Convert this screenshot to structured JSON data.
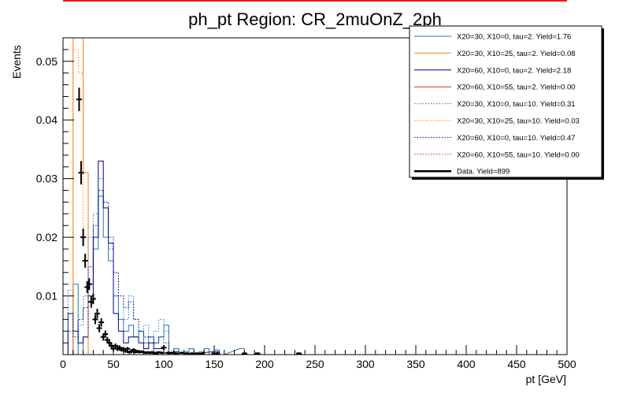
{
  "chart_data": {
    "type": "histogram",
    "title": "ph_pt Region: CR_2muOnZ_2ph",
    "xlabel": "pt [GeV]",
    "ylabel": "Events",
    "xlim": [
      0,
      500
    ],
    "ylim": [
      0,
      0.054
    ],
    "bin_width": 5,
    "x_ticks": [
      "0",
      "50",
      "100",
      "150",
      "200",
      "250",
      "300",
      "350",
      "400",
      "450",
      "500"
    ],
    "y_ticks": [
      "0.01",
      "0.02",
      "0.03",
      "0.04",
      "0.05"
    ],
    "legend_position": "top-right",
    "series": [
      {
        "name": "X20=30, X10=0, tau=2. Yield=1.76",
        "color": "#1f77b4",
        "style": "solid",
        "bins": [
          [
            5,
            0.0
          ],
          [
            10,
            0.012
          ],
          [
            15,
            0.0
          ],
          [
            20,
            0.003
          ],
          [
            25,
            0.012
          ],
          [
            30,
            0.018
          ],
          [
            35,
            0.027
          ],
          [
            40,
            0.02
          ],
          [
            45,
            0.016
          ],
          [
            50,
            0.01
          ],
          [
            55,
            0.006
          ],
          [
            60,
            0.004
          ],
          [
            65,
            0.005
          ],
          [
            70,
            0.003
          ],
          [
            75,
            0.004
          ],
          [
            80,
            0.002
          ],
          [
            85,
            0.003
          ],
          [
            90,
            0.002
          ],
          [
            95,
            0.003
          ],
          [
            100,
            0.005
          ],
          [
            105,
            0.0
          ],
          [
            110,
            0.001
          ],
          [
            115,
            0.0
          ],
          [
            120,
            0.0005
          ],
          [
            125,
            0.001
          ],
          [
            130,
            0.0
          ],
          [
            135,
            0.0005
          ],
          [
            140,
            0.001
          ],
          [
            145,
            0.0
          ],
          [
            150,
            0.0008
          ],
          [
            155,
            0.0
          ],
          [
            175,
            0.001
          ],
          [
            180,
            0.0
          ]
        ]
      },
      {
        "name": "X20=30, X10=25, tau=2. Yield=0.08",
        "color": "#ff7f0e",
        "style": "solid",
        "bins": [
          [
            5,
            0.0
          ],
          [
            10,
            0.054
          ],
          [
            15,
            0.054
          ],
          [
            20,
            0.031
          ],
          [
            25,
            0.0
          ]
        ]
      },
      {
        "name": "X20=60, X10=0, tau=2. Yield=2.18",
        "color": "#00008b",
        "style": "solid",
        "bins": [
          [
            5,
            0.007
          ],
          [
            10,
            0.004
          ],
          [
            15,
            0.002
          ],
          [
            20,
            0.003
          ],
          [
            25,
            0.01
          ],
          [
            30,
            0.02
          ],
          [
            35,
            0.033
          ],
          [
            40,
            0.025
          ],
          [
            45,
            0.019
          ],
          [
            50,
            0.007
          ],
          [
            55,
            0.004
          ],
          [
            60,
            0.002
          ],
          [
            65,
            0.003
          ],
          [
            70,
            0.003
          ],
          [
            75,
            0.002
          ],
          [
            80,
            0.001
          ],
          [
            85,
            0.002
          ],
          [
            90,
            0.001
          ],
          [
            95,
            0.001
          ],
          [
            100,
            0.0
          ],
          [
            110,
            0.0005
          ],
          [
            115,
            0.0
          ],
          [
            150,
            0.0005
          ],
          [
            155,
            0.0
          ]
        ]
      },
      {
        "name": "X20=60, X10=55, tau=2. Yield=0.00",
        "color": "#d62728",
        "style": "solid",
        "bins": []
      },
      {
        "name": "X20=30, X10=0, tau=10. Yield=0.31",
        "color": "#1f77b4",
        "style": "dotted",
        "bins": [
          [
            5,
            0.011
          ],
          [
            10,
            0.0
          ],
          [
            15,
            0.005
          ],
          [
            20,
            0.01
          ],
          [
            25,
            0.02
          ],
          [
            30,
            0.024
          ],
          [
            35,
            0.03
          ],
          [
            40,
            0.026
          ],
          [
            45,
            0.018
          ],
          [
            50,
            0.014
          ],
          [
            55,
            0.01
          ],
          [
            60,
            0.006
          ],
          [
            65,
            0.01
          ],
          [
            70,
            0.006
          ],
          [
            75,
            0.004
          ],
          [
            80,
            0.005
          ],
          [
            85,
            0.003
          ],
          [
            90,
            0.004
          ],
          [
            95,
            0.006
          ],
          [
            100,
            0.004
          ],
          [
            105,
            0.0
          ],
          [
            110,
            0.001
          ],
          [
            115,
            0.0
          ]
        ]
      },
      {
        "name": "X20=30, X10=25, tau=10. Yield=0.03",
        "color": "#ff7f0e",
        "style": "dotted",
        "bins": [
          [
            5,
            0.0
          ],
          [
            10,
            0.052
          ],
          [
            15,
            0.048
          ],
          [
            20,
            0.02
          ],
          [
            25,
            0.0
          ]
        ]
      },
      {
        "name": "X20=60, X10=0, tau=10. Yield=0.47",
        "color": "#00008b",
        "style": "dotted",
        "bins": [
          [
            5,
            0.004
          ],
          [
            10,
            0.003
          ],
          [
            15,
            0.006
          ],
          [
            20,
            0.008
          ],
          [
            25,
            0.015
          ],
          [
            30,
            0.022
          ],
          [
            35,
            0.028
          ],
          [
            40,
            0.026
          ],
          [
            45,
            0.02
          ],
          [
            50,
            0.014
          ],
          [
            55,
            0.01
          ],
          [
            60,
            0.008
          ],
          [
            65,
            0.009
          ],
          [
            70,
            0.006
          ],
          [
            75,
            0.004
          ],
          [
            80,
            0.003
          ],
          [
            85,
            0.003
          ],
          [
            90,
            0.002
          ],
          [
            95,
            0.003
          ],
          [
            100,
            0.002
          ],
          [
            105,
            0.0
          ]
        ]
      },
      {
        "name": "X20=60, X10=55, tau=10. Yield=0.00",
        "color": "#d62728",
        "style": "dotted",
        "bins": []
      },
      {
        "name": "Data. Yield=899",
        "color": "#000000",
        "style": "points",
        "points": [
          [
            16,
            0.0435,
            0.002
          ],
          [
            18,
            0.031,
            0.002
          ],
          [
            20,
            0.02,
            0.0015
          ],
          [
            22,
            0.016,
            0.0012
          ],
          [
            24,
            0.0115,
            0.001
          ],
          [
            26,
            0.012,
            0.001
          ],
          [
            28,
            0.009,
            0.001
          ],
          [
            30,
            0.0095,
            0.0009
          ],
          [
            32,
            0.006,
            0.0008
          ],
          [
            34,
            0.007,
            0.0008
          ],
          [
            36,
            0.0045,
            0.0007
          ],
          [
            38,
            0.0055,
            0.0007
          ],
          [
            40,
            0.003,
            0.0006
          ],
          [
            42,
            0.0035,
            0.0006
          ],
          [
            44,
            0.0025,
            0.0005
          ],
          [
            46,
            0.002,
            0.0005
          ],
          [
            48,
            0.0015,
            0.0004
          ],
          [
            50,
            0.001,
            0.0004
          ],
          [
            52,
            0.0015,
            0.0004
          ],
          [
            54,
            0.001,
            0.0004
          ],
          [
            56,
            0.0012,
            0.0004
          ],
          [
            58,
            0.0008,
            0.0003
          ],
          [
            60,
            0.001,
            0.0003
          ],
          [
            62,
            0.0006,
            0.0003
          ],
          [
            64,
            0.001,
            0.0003
          ],
          [
            66,
            0.0004,
            0.0003
          ],
          [
            68,
            0.0006,
            0.0003
          ],
          [
            70,
            0.0008,
            0.0003
          ],
          [
            72,
            0.0004,
            0.0002
          ],
          [
            74,
            0.0006,
            0.0002
          ],
          [
            76,
            0.0004,
            0.0002
          ],
          [
            78,
            0.0005,
            0.0002
          ],
          [
            80,
            0.0004,
            0.0002
          ],
          [
            82,
            0.0003,
            0.0002
          ],
          [
            84,
            0.0004,
            0.0002
          ],
          [
            86,
            0.0003,
            0.0002
          ],
          [
            88,
            0.0004,
            0.0002
          ],
          [
            90,
            0.0003,
            0.0002
          ],
          [
            92,
            0.0002,
            0.0002
          ],
          [
            95,
            0.0004,
            0.0002
          ],
          [
            98,
            0.0003,
            0.0002
          ],
          [
            100,
            0.0012,
            0.0004
          ],
          [
            104,
            0.0003,
            0.0002
          ],
          [
            108,
            0.0003,
            0.0002
          ],
          [
            112,
            0.0002,
            0.0002
          ],
          [
            118,
            0.0003,
            0.0002
          ],
          [
            123,
            0.0002,
            0.0002
          ],
          [
            128,
            0.0002,
            0.0002
          ],
          [
            133,
            0.0002,
            0.0002
          ],
          [
            138,
            0.0002,
            0.0002
          ],
          [
            150,
            0.0002,
            0.0002
          ],
          [
            153,
            0.0002,
            0.0002
          ],
          [
            180,
            0.0002,
            0.0002
          ],
          [
            193,
            0.0002,
            0.0002
          ],
          [
            234,
            0.0002,
            0.0002
          ]
        ]
      }
    ]
  }
}
